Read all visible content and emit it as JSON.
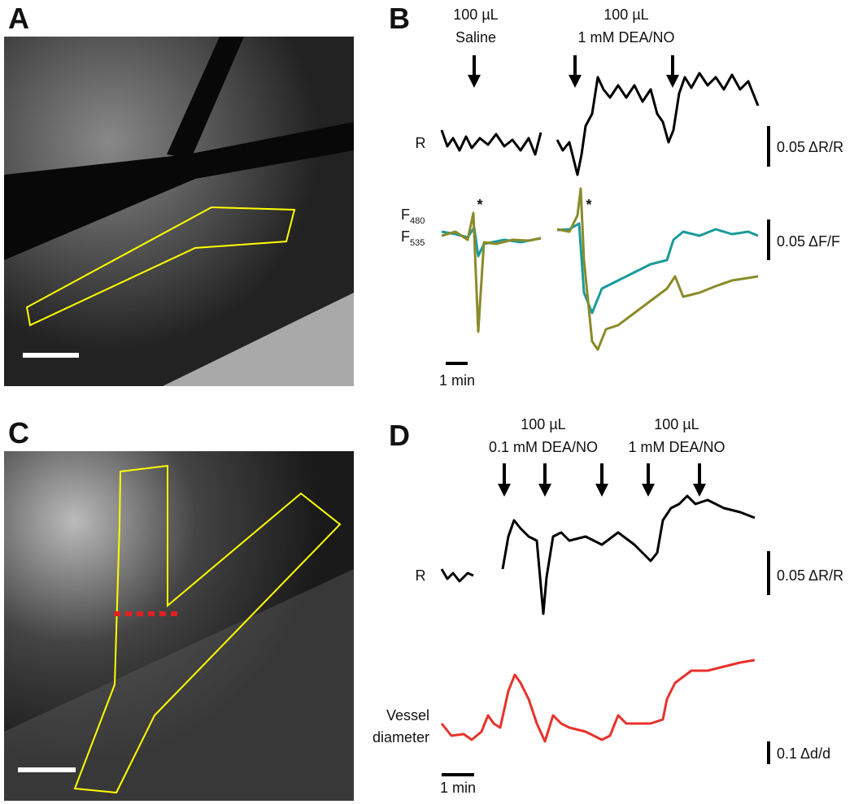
{
  "panels": {
    "a": {
      "label": "A"
    },
    "b": {
      "label": "B",
      "arrow_labels": [
        [
          "100 µL",
          "Saline"
        ],
        [
          "100 µL",
          "1 mM DEA/NO"
        ]
      ],
      "r_label": "R",
      "r_scale": "0.05 ΔR/R",
      "f_labels": [
        {
          "letter": "F",
          "sub": "480"
        },
        {
          "letter": "F",
          "sub": "535"
        }
      ],
      "asterisks": [
        "*",
        "*"
      ],
      "f_scale": "0.05 ΔF/F",
      "time_scale": "1 min"
    },
    "c": {
      "label": "C"
    },
    "d": {
      "label": "D",
      "arrow_labels": [
        [
          "100 µL",
          "0.1 mM DEA/NO"
        ],
        [
          "100 µL",
          "1 mM DEA/NO"
        ]
      ],
      "r_label": "R",
      "r_scale": "0.05 ΔR/R",
      "vessel_label": [
        "Vessel",
        "diameter"
      ],
      "vessel_scale": "0.1 Δd/d",
      "time_scale": "1 min"
    }
  }
}
